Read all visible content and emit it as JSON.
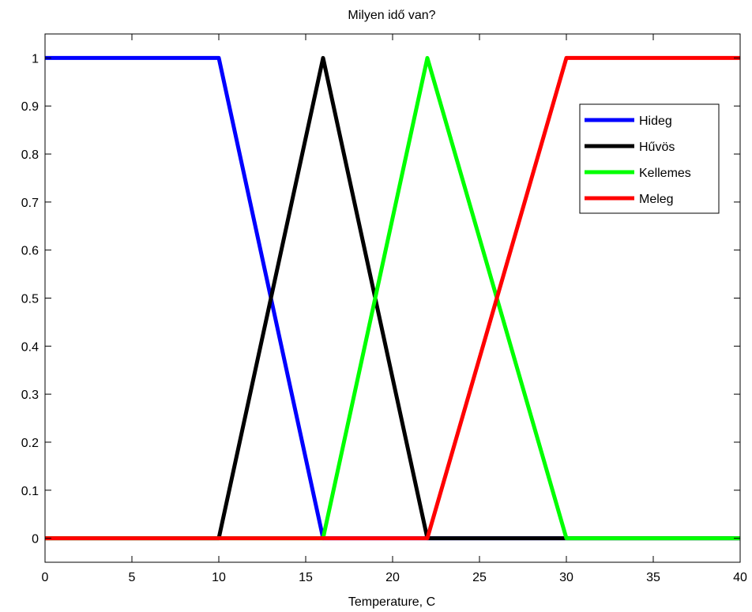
{
  "chart_data": {
    "type": "line",
    "title": "Milyen idő van?",
    "xlabel": "Temperature, C",
    "ylabel": "",
    "xlim": [
      0,
      40
    ],
    "ylim": [
      -0.05,
      1.05
    ],
    "xticks": [
      0,
      5,
      10,
      15,
      20,
      25,
      30,
      35,
      40
    ],
    "xtick_labels": [
      "0",
      "5",
      "10",
      "15",
      "20",
      "25",
      "30",
      "35",
      "40"
    ],
    "yticks": [
      0,
      0.1,
      0.2,
      0.3,
      0.4,
      0.5,
      0.6,
      0.7,
      0.8,
      0.9,
      1
    ],
    "ytick_labels": [
      "0",
      "0.1",
      "0.2",
      "0.3",
      "0.4",
      "0.5",
      "0.6",
      "0.7",
      "0.8",
      "0.9",
      "1"
    ],
    "grid": false,
    "legend_position": "upper-right",
    "series": [
      {
        "name": "Hideg",
        "color": "#0000ff",
        "x": [
          0,
          10,
          16,
          40
        ],
        "y": [
          1,
          1,
          0,
          0
        ]
      },
      {
        "name": "Hűvös",
        "color": "#000000",
        "x": [
          0,
          10,
          16,
          22,
          40
        ],
        "y": [
          0,
          0,
          1,
          0,
          0
        ]
      },
      {
        "name": "Kellemes",
        "color": "#00ff00",
        "x": [
          0,
          16,
          22,
          30,
          40
        ],
        "y": [
          0,
          0,
          1,
          0,
          0
        ]
      },
      {
        "name": "Meleg",
        "color": "#ff0000",
        "x": [
          0,
          22,
          30,
          40
        ],
        "y": [
          0,
          0,
          1,
          1
        ]
      }
    ]
  }
}
